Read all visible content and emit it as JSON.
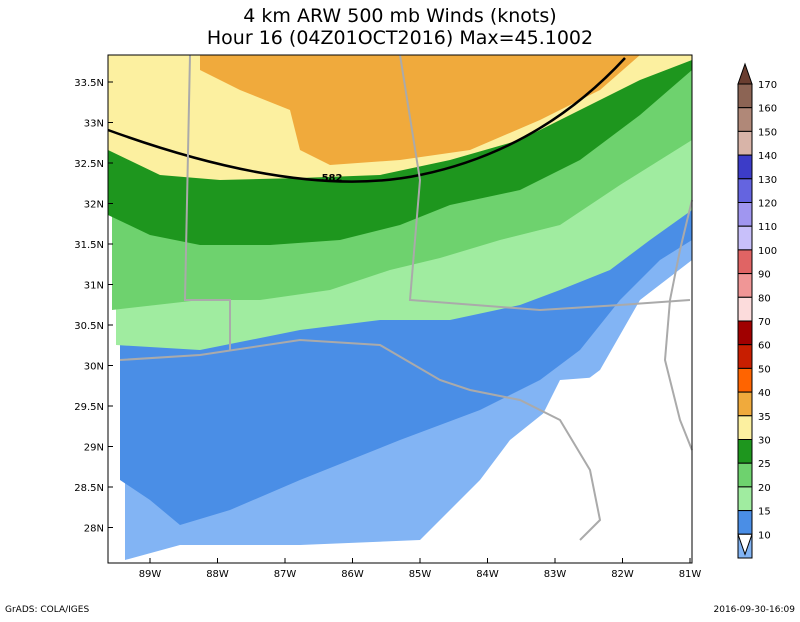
{
  "title": {
    "line1": "4 km ARW 500 mb Winds (knots)",
    "line2": "Hour 16 (04Z01OCT2016) Max=45.1002"
  },
  "map": {
    "lat_labels": [
      "33.5N",
      "33N",
      "32.5N",
      "32N",
      "31.5N",
      "31N",
      "30.5N",
      "30N",
      "29.5N",
      "29N",
      "28.5N",
      "28N"
    ],
    "lon_labels": [
      "89W",
      "88W",
      "87W",
      "86W",
      "85W",
      "84W",
      "83W",
      "82W",
      "81W"
    ],
    "contour_label": "582"
  },
  "colorbar": {
    "levels": [
      170,
      160,
      150,
      140,
      130,
      120,
      110,
      100,
      90,
      80,
      70,
      60,
      50,
      40,
      35,
      30,
      25,
      20,
      15,
      10
    ],
    "colors": [
      "#6a3e30",
      "#8c6454",
      "#b08878",
      "#d8b4a8",
      "#3c3cc8",
      "#6464e0",
      "#a096f0",
      "#c8c0fa",
      "#e06464",
      "#f09696",
      "#fcdcdc",
      "#a00000",
      "#c81e00",
      "#ff6400",
      "#f0aa3c",
      "#fcf0a0",
      "#1e961e",
      "#6ed26e",
      "#a0eca0",
      "#4a8ee6",
      "#82b4f4",
      "#ffffff"
    ]
  },
  "footer": {
    "left": "GrADS: COLA/IGES",
    "right": "2016-09-30-16:09"
  }
}
